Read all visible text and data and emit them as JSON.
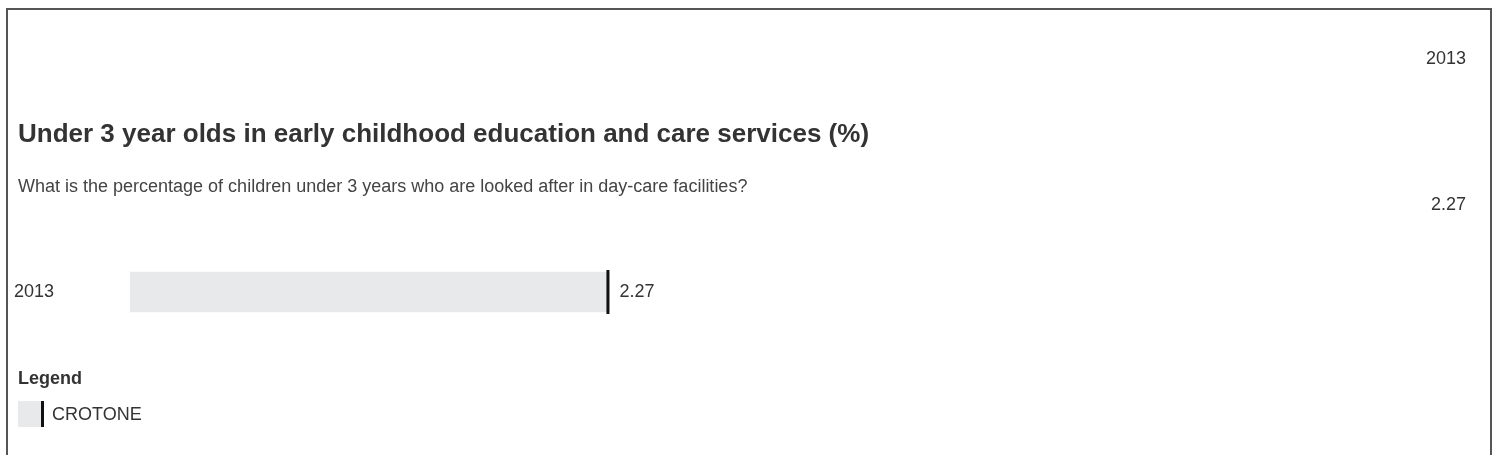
{
  "chart_data": {
    "type": "bar",
    "orientation": "horizontal",
    "title": "Under 3 year olds in early childhood education and care services (%)",
    "subtitle": "What is the percentage of children under 3 years who are looked after in day-care facilities?",
    "annotations": [
      "2013",
      "2.27"
    ],
    "categories": [
      "2013"
    ],
    "series": [
      {
        "name": "CROTONE",
        "color": "#e8e9eb",
        "values": [
          2.27
        ]
      }
    ],
    "data_labels": true,
    "grid": false,
    "legend": "bottom",
    "legend_title": "Legend"
  }
}
